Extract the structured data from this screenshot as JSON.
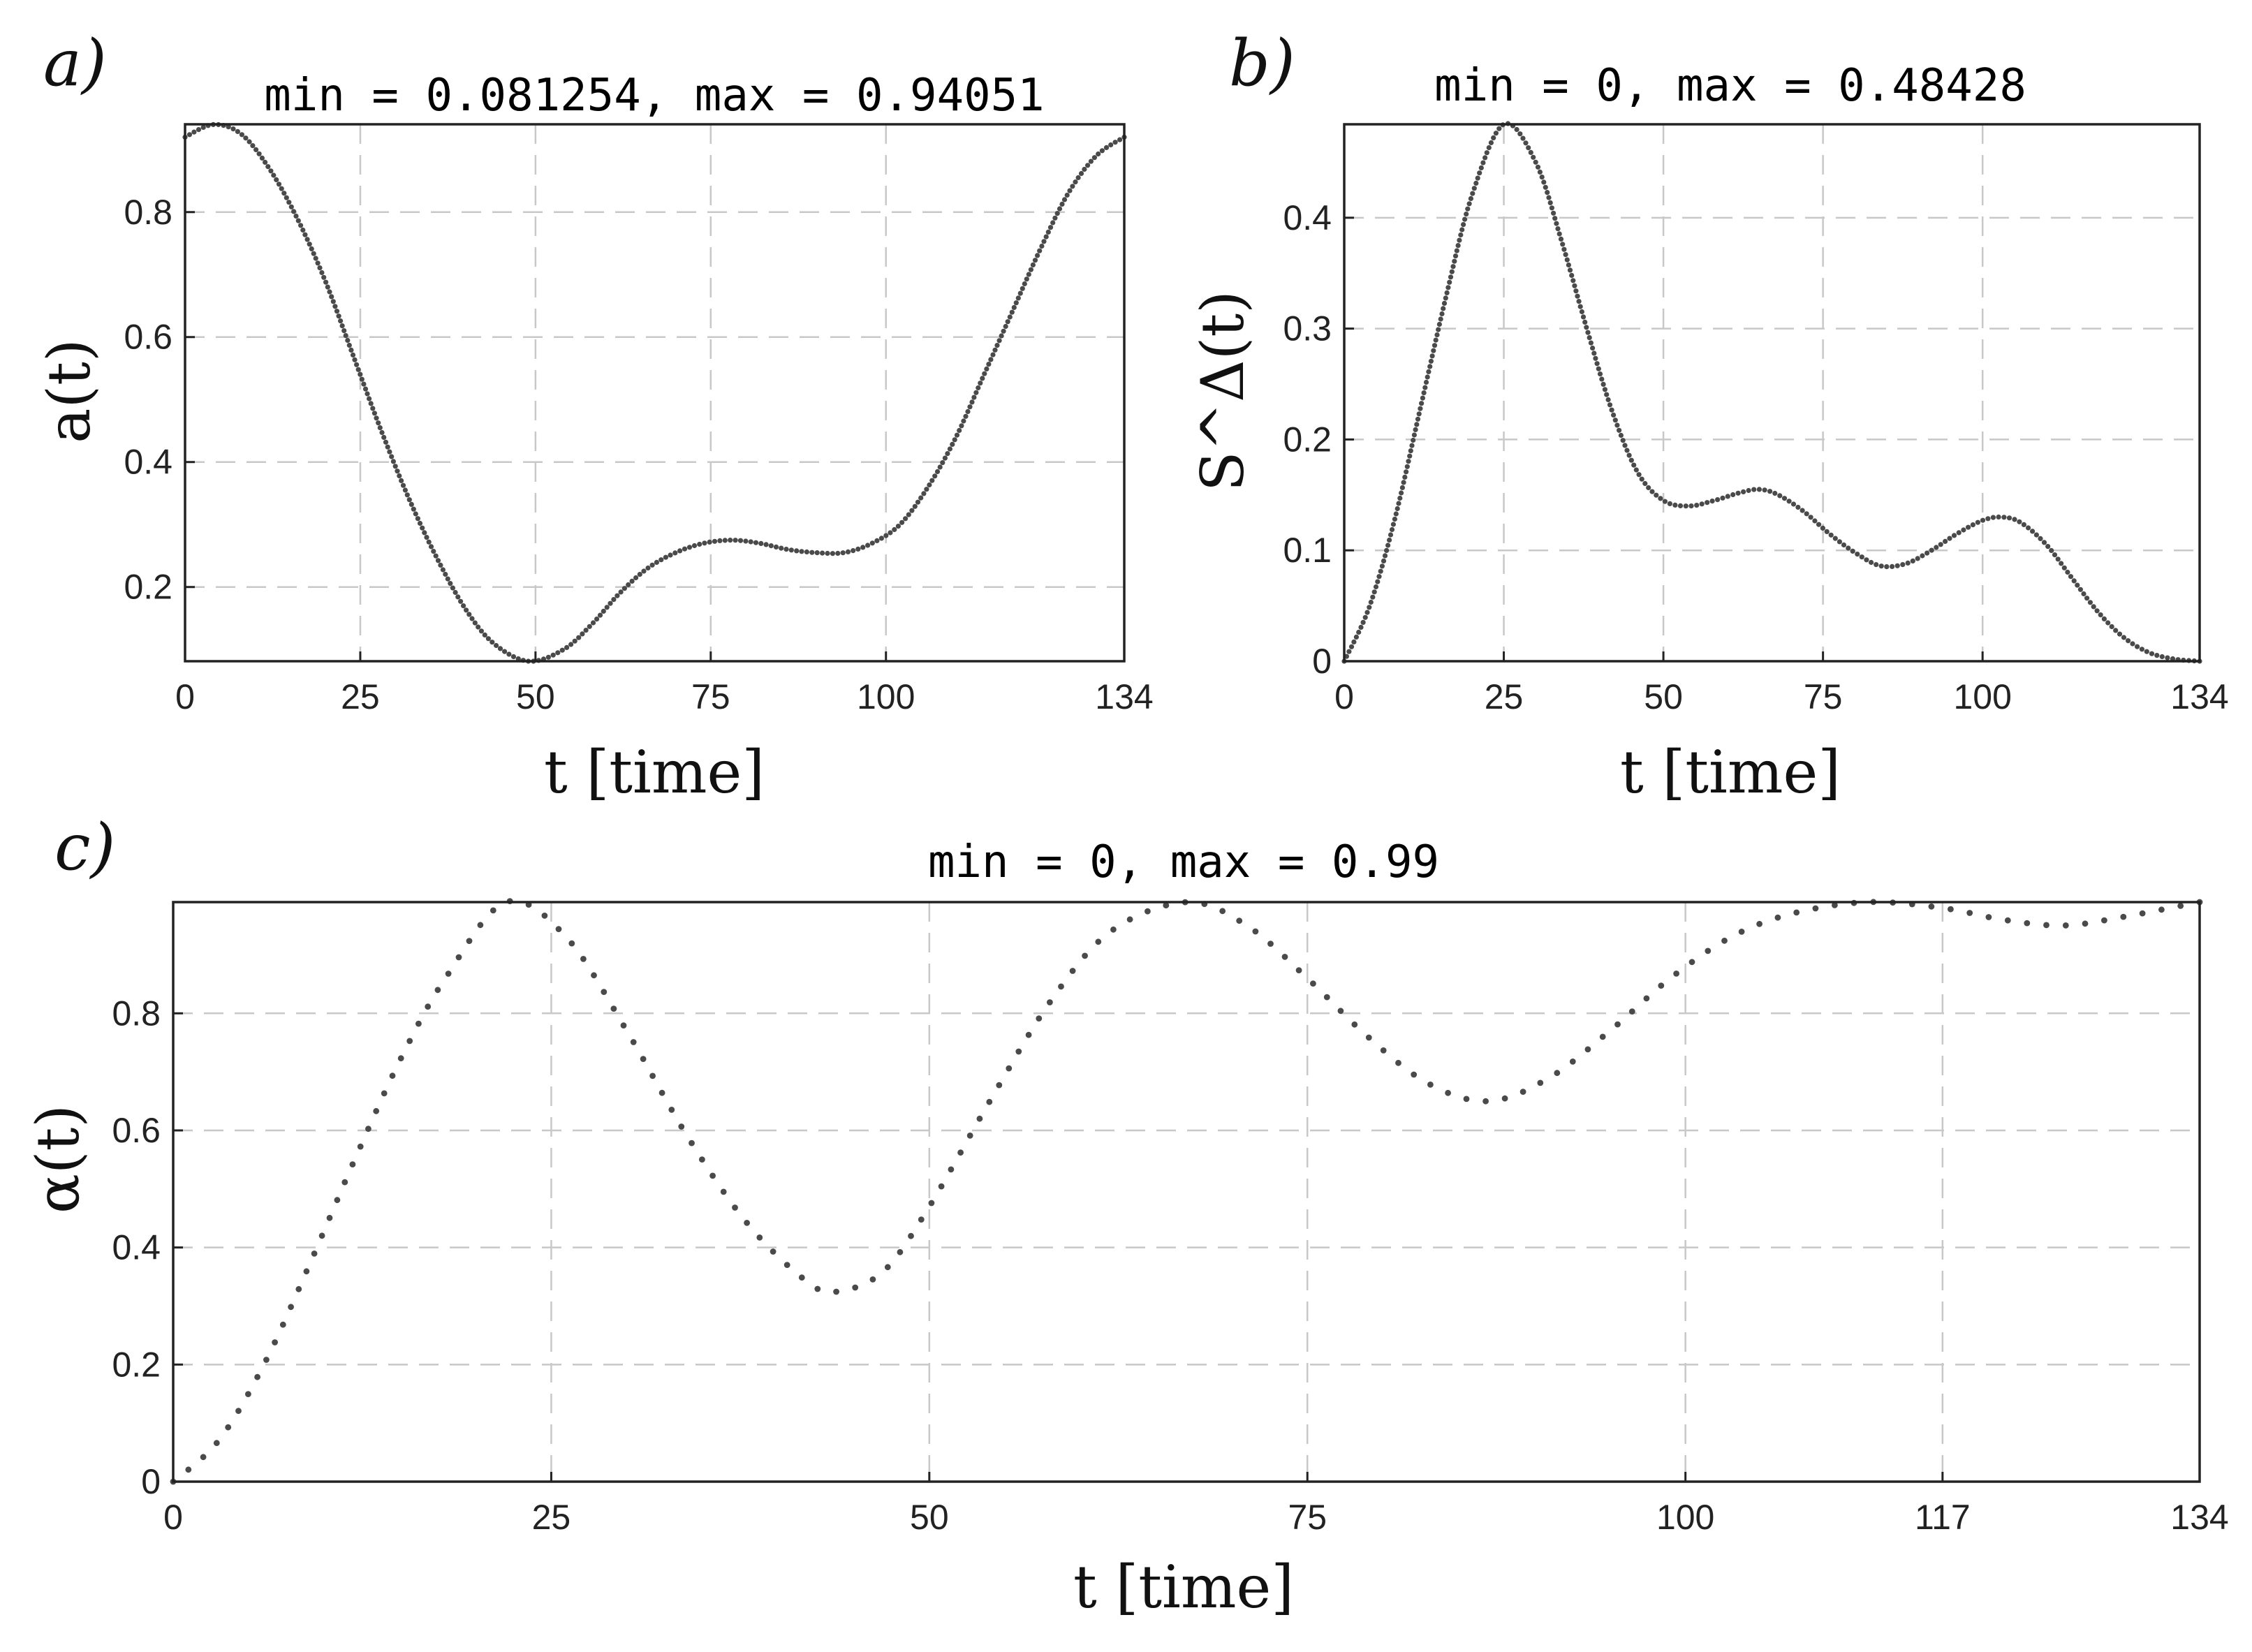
{
  "chart_data": [
    {
      "type": "scatter",
      "panel_label": "a)",
      "title": "min = 0.081254, max = 0.94051",
      "xlabel": "t [time]",
      "ylabel": "a(t)",
      "xlim": [
        0,
        134
      ],
      "ylim": [
        0.081254,
        0.94051
      ],
      "xticks": [
        0,
        25,
        50,
        75,
        100,
        134
      ],
      "yticks": [
        0.2,
        0.4,
        0.6,
        0.8
      ],
      "grid": true,
      "series": [
        {
          "name": "a(t)",
          "x": [
            0,
            4,
            8,
            12,
            16,
            20,
            24,
            28,
            32,
            36,
            40,
            44,
            49,
            54,
            58,
            62,
            66,
            70,
            74,
            78,
            82,
            86,
            90,
            94,
            98,
            102,
            106,
            110,
            114,
            118,
            122,
            126,
            130,
            134
          ],
          "y": [
            0.92,
            0.94,
            0.925,
            0.87,
            0.79,
            0.69,
            0.57,
            0.45,
            0.34,
            0.245,
            0.165,
            0.11,
            0.081254,
            0.1,
            0.14,
            0.19,
            0.23,
            0.255,
            0.27,
            0.275,
            0.27,
            0.26,
            0.255,
            0.255,
            0.27,
            0.3,
            0.36,
            0.44,
            0.54,
            0.64,
            0.74,
            0.83,
            0.89,
            0.92
          ]
        }
      ]
    },
    {
      "type": "scatter",
      "panel_label": "b)",
      "title": "min = 0, max = 0.48428",
      "xlabel": "t [time]",
      "ylabel": "S^Δ(t)",
      "xlim": [
        0,
        134
      ],
      "ylim": [
        0,
        0.48428
      ],
      "xticks": [
        0,
        25,
        50,
        75,
        100,
        134
      ],
      "yticks": [
        0,
        0.1,
        0.2,
        0.3,
        0.4
      ],
      "grid": true,
      "series": [
        {
          "name": "S^Δ(t)",
          "x": [
            0,
            4,
            8,
            12,
            16,
            20,
            25,
            30,
            34,
            38,
            42,
            46,
            50,
            54,
            58,
            62,
            65,
            68,
            72,
            76,
            80,
            84,
            88,
            92,
            96,
            100,
            103,
            106,
            110,
            114,
            118,
            122,
            126,
            130,
            134
          ],
          "y": [
            0,
            0.05,
            0.13,
            0.23,
            0.33,
            0.42,
            0.48428,
            0.45,
            0.38,
            0.3,
            0.225,
            0.17,
            0.145,
            0.14,
            0.145,
            0.152,
            0.155,
            0.15,
            0.135,
            0.115,
            0.098,
            0.086,
            0.088,
            0.1,
            0.115,
            0.127,
            0.13,
            0.125,
            0.105,
            0.075,
            0.045,
            0.022,
            0.008,
            0.002,
            0
          ]
        }
      ]
    },
    {
      "type": "scatter",
      "panel_label": "c)",
      "title": "min = 0, max = 0.99",
      "xlabel": "t [time]",
      "ylabel": "α(t)",
      "xlim": [
        0,
        134
      ],
      "ylim": [
        0,
        0.99
      ],
      "xticks": [
        0,
        25,
        50,
        75,
        100,
        117,
        134
      ],
      "yticks": [
        0,
        0.2,
        0.4,
        0.6,
        0.8
      ],
      "grid": true,
      "series": [
        {
          "name": "α(t)",
          "x": [
            0,
            3,
            6,
            9,
            12,
            15,
            18,
            22,
            26,
            30,
            34,
            38,
            42,
            44,
            47,
            50,
            54,
            58,
            62,
            67,
            71,
            75,
            79,
            83,
            87,
            91,
            95,
            99,
            103,
            107,
            112,
            117,
            121,
            125,
            129,
            134
          ],
          "y": [
            0,
            0.07,
            0.2,
            0.37,
            0.55,
            0.72,
            0.86,
            0.99,
            0.93,
            0.77,
            0.59,
            0.44,
            0.34,
            0.325,
            0.36,
            0.47,
            0.65,
            0.82,
            0.94,
            0.99,
            0.95,
            0.86,
            0.76,
            0.68,
            0.65,
            0.69,
            0.77,
            0.86,
            0.93,
            0.97,
            0.99,
            0.98,
            0.96,
            0.95,
            0.965,
            0.99
          ]
        }
      ]
    }
  ]
}
